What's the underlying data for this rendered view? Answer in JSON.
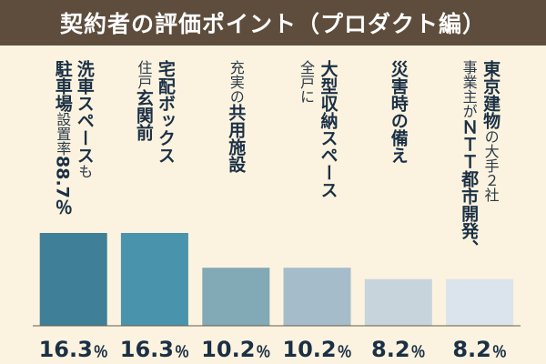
{
  "chart_data": {
    "type": "bar",
    "title": "契約者の評価ポイント（プロダクト編）",
    "categories": [
      {
        "columns": [
          {
            "segments": [
              {
                "text": "洗車スペース",
                "style": "bold"
              },
              {
                "text": "も",
                "style": "small"
              }
            ]
          },
          {
            "segments": [
              {
                "text": "駐車場",
                "style": "bold"
              },
              {
                "text": "設置率",
                "style": "small"
              },
              {
                "text": "88.7％",
                "style": "bold"
              }
            ]
          }
        ]
      },
      {
        "columns": [
          {
            "segments": [
              {
                "text": "宅配ボックス",
                "style": "bold"
              }
            ]
          },
          {
            "segments": [
              {
                "text": "住戸",
                "style": "small"
              },
              {
                "text": "玄関前",
                "style": "bold"
              }
            ]
          }
        ]
      },
      {
        "columns": [
          {
            "segments": [
              {
                "text": "充実の",
                "style": "small"
              },
              {
                "text": "共用施設",
                "style": "bold"
              }
            ]
          }
        ]
      },
      {
        "columns": [
          {
            "segments": [
              {
                "text": "大型収納スペース",
                "style": "bold"
              }
            ]
          },
          {
            "segments": [
              {
                "text": "全戸に",
                "style": "small"
              }
            ]
          }
        ]
      },
      {
        "columns": [
          {
            "segments": [
              {
                "text": "災害時の備え",
                "style": "bold"
              }
            ]
          }
        ]
      },
      {
        "columns": [
          {
            "segments": [
              {
                "text": "東京建物",
                "style": "bold"
              },
              {
                "text": "の大手２社",
                "style": "small"
              }
            ]
          },
          {
            "segments": [
              {
                "text": "事業主",
                "style": "small"
              },
              {
                "text": "が",
                "style": "small"
              },
              {
                "text": "ＮＴＴ都市開発、",
                "style": "bold"
              }
            ]
          }
        ]
      }
    ],
    "values": [
      16.3,
      16.3,
      10.2,
      10.2,
      8.2,
      8.2
    ],
    "value_labels": [
      "16.3",
      "16.3",
      "10.2",
      "10.2",
      "8.2",
      "8.2"
    ],
    "unit": "％",
    "ylim": [
      0,
      16.3
    ],
    "bar_colors": [
      "#3f7f97",
      "#4a93ac",
      "#82a9b6",
      "#a5bccb",
      "#c7d4dc",
      "#dbe3ec"
    ],
    "colors": {
      "title_bg": "#5e4d3d",
      "text_dark": "#1b3045",
      "text_small": "#2b3a4a"
    }
  }
}
